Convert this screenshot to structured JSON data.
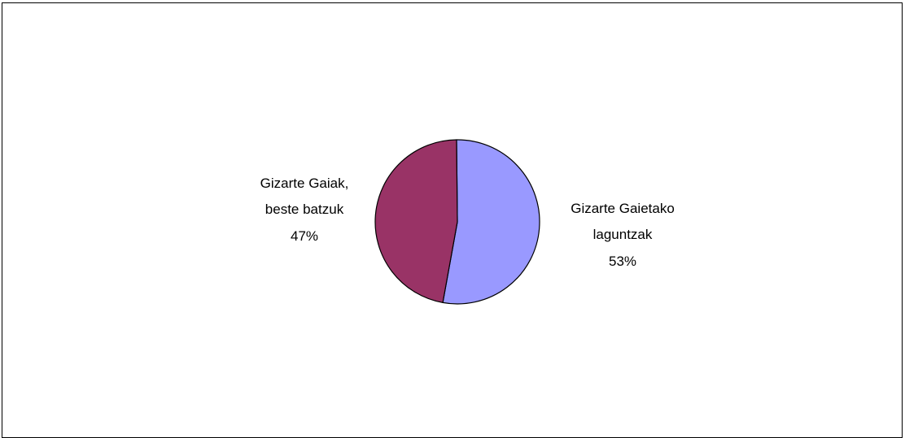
{
  "chart_data": {
    "type": "pie",
    "slices": [
      {
        "label_lines": [
          "Gizarte Gaietako",
          "laguntzak"
        ],
        "percent_label": "53%",
        "value": 53,
        "color": "#9999ff"
      },
      {
        "label_lines": [
          "Gizarte Gaiak,",
          "beste batzuk"
        ],
        "percent_label": "47%",
        "value": 47,
        "color": "#993366"
      }
    ],
    "legend": "none"
  }
}
